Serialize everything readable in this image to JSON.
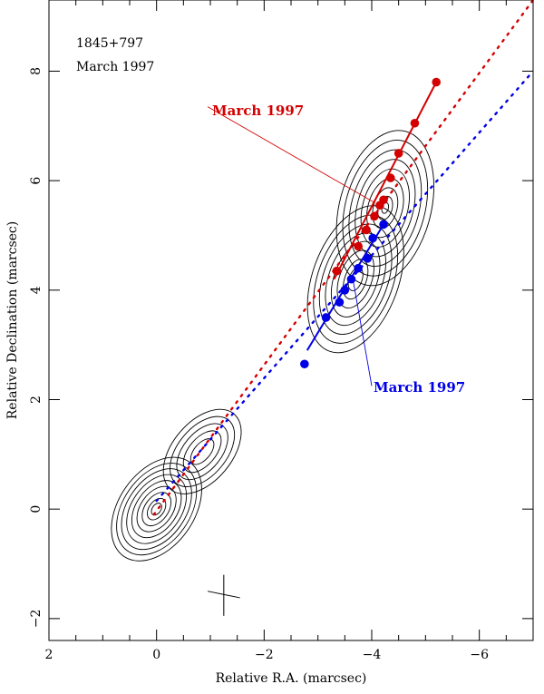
{
  "chart_data": {
    "type": "scatter",
    "title_lines": [
      "1845+797",
      "March 1997"
    ],
    "xlabel": "Relative R.A. (marcsec)",
    "ylabel": "Relative Declination (marcsec)",
    "xlim": [
      2,
      -7
    ],
    "ylim": [
      -2.4,
      9.3
    ],
    "xticks": [
      2,
      0,
      -2,
      -4,
      -6
    ],
    "xtick_labels": [
      "2",
      "0",
      "−2",
      "−4",
      "−6"
    ],
    "yticks": [
      -2,
      0,
      2,
      4,
      6,
      8
    ],
    "ytick_labels": [
      "−2",
      "0",
      "2",
      "4",
      "6",
      "8"
    ],
    "annotations": [
      {
        "text": "March 1997",
        "color": "#d40000",
        "anchor_x": -0.95,
        "anchor_y": 7.35,
        "arrow_to": [
          -4.05,
          5.6
        ]
      },
      {
        "text": "March 1997",
        "color": "#0000e6",
        "anchor_x": -4.0,
        "anchor_y": 2.25,
        "arrow_to": [
          -3.65,
          4.2
        ]
      }
    ],
    "series": [
      {
        "name": "red-components",
        "color": "#d40000",
        "x": [
          -3.35,
          -3.75,
          -3.9,
          -4.05,
          -4.15,
          -4.22,
          -4.35,
          -4.5,
          -4.8,
          -5.2
        ],
        "y": [
          4.35,
          4.8,
          5.1,
          5.35,
          5.55,
          5.65,
          6.05,
          6.5,
          7.05,
          7.8
        ]
      },
      {
        "name": "blue-components",
        "color": "#0000e6",
        "x": [
          -2.75,
          -3.15,
          -3.4,
          -3.5,
          -3.62,
          -3.75,
          -3.92,
          -4.02,
          -4.22
        ],
        "y": [
          2.65,
          3.5,
          3.78,
          4.0,
          4.2,
          4.4,
          4.58,
          4.95,
          5.2
        ]
      }
    ],
    "red_fit_line": {
      "x": [
        -3.3,
        -5.2
      ],
      "y": [
        4.2,
        7.8
      ]
    },
    "blue_fit_line": {
      "x": [
        -2.8,
        -4.25
      ],
      "y": [
        2.9,
        5.25
      ]
    },
    "red_dotted_line": {
      "x": [
        0.05,
        -7.0
      ],
      "y": [
        -0.1,
        9.3
      ]
    },
    "blue_dotted_line": {
      "x": [
        0.0,
        -7.0
      ],
      "y": [
        0.15,
        8.0
      ]
    },
    "beam_cross": {
      "x": [
        -1.25,
        -1.25,
        -0.95,
        -1.55
      ],
      "y": [
        -1.2,
        -1.95,
        -1.5,
        -1.62
      ]
    },
    "contours": [
      {
        "name": "core",
        "cx": 0.0,
        "cy": 0.0,
        "rx": [
          0.7,
          0.62,
          0.54,
          0.46,
          0.38,
          0.3,
          0.22,
          0.14,
          0.08
        ],
        "ry": [
          1.05,
          0.93,
          0.82,
          0.7,
          0.58,
          0.46,
          0.34,
          0.22,
          0.12
        ],
        "rotate": 35
      },
      {
        "name": "inner-jet",
        "cx": -0.85,
        "cy": 1.05,
        "rx": [
          0.55,
          0.45,
          0.35,
          0.25,
          0.15
        ],
        "ry": [
          0.9,
          0.75,
          0.6,
          0.45,
          0.28
        ],
        "rotate": 40
      },
      {
        "name": "jet-lower",
        "cx": -3.7,
        "cy": 4.2,
        "rx": [
          0.8,
          0.7,
          0.6,
          0.5,
          0.4,
          0.3,
          0.2,
          0.12
        ],
        "ry": [
          1.4,
          1.22,
          1.05,
          0.88,
          0.72,
          0.55,
          0.38,
          0.22
        ],
        "rotate": 20
      },
      {
        "name": "jet-upper",
        "cx": -4.25,
        "cy": 5.5,
        "rx": [
          0.85,
          0.74,
          0.63,
          0.52,
          0.42,
          0.32,
          0.22,
          0.13,
          0.06
        ],
        "ry": [
          1.45,
          1.27,
          1.09,
          0.91,
          0.73,
          0.55,
          0.38,
          0.22,
          0.1
        ],
        "rotate": 15
      }
    ]
  }
}
